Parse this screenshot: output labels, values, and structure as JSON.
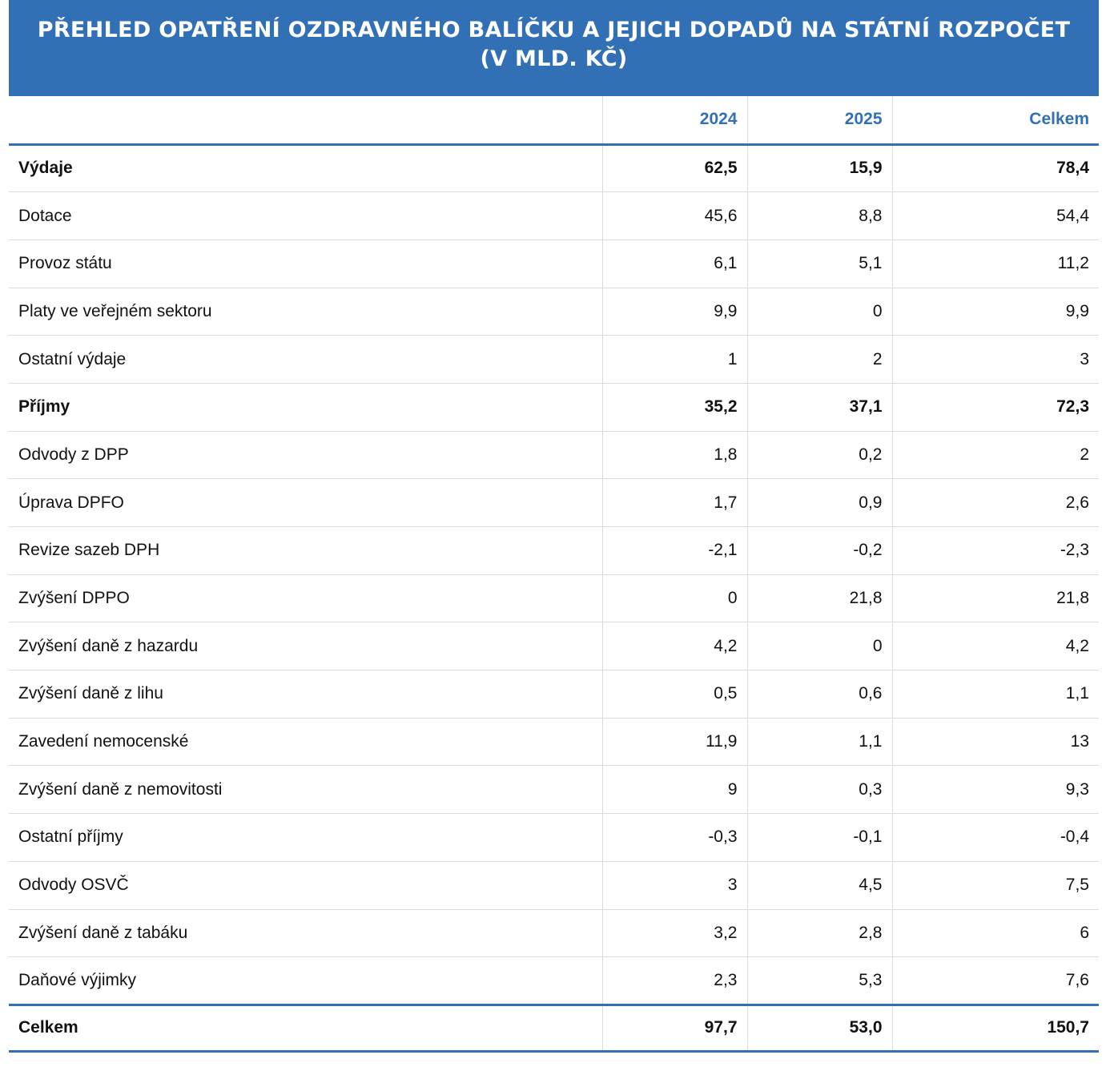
{
  "colors": {
    "accent": "#3270b6",
    "grid": "#dcdcdc",
    "text": "#111111"
  },
  "chart_data": {
    "type": "table",
    "title": "PŘEHLED OPATŘENÍ OZDRAVNÉHO BALÍČKU A JEJICH DOPADŮ NA STÁTNÍ ROZPOČET (V MLD. KČ)",
    "columns": [
      "",
      "2024",
      "2025",
      "Celkem"
    ],
    "rows": [
      {
        "label": "Výdaje",
        "bold": true,
        "values": [
          "62,5",
          "15,9",
          "78,4"
        ]
      },
      {
        "label": "Dotace",
        "bold": false,
        "values": [
          "45,6",
          "8,8",
          "54,4"
        ]
      },
      {
        "label": "Provoz státu",
        "bold": false,
        "values": [
          "6,1",
          "5,1",
          "11,2"
        ]
      },
      {
        "label": "Platy ve veřejném sektoru",
        "bold": false,
        "values": [
          "9,9",
          "0",
          "9,9"
        ]
      },
      {
        "label": "Ostatní výdaje",
        "bold": false,
        "values": [
          "1",
          "2",
          "3"
        ]
      },
      {
        "label": "Příjmy",
        "bold": true,
        "values": [
          "35,2",
          "37,1",
          "72,3"
        ]
      },
      {
        "label": "Odvody z DPP",
        "bold": false,
        "values": [
          "1,8",
          "0,2",
          "2"
        ]
      },
      {
        "label": "Úprava DPFO",
        "bold": false,
        "values": [
          "1,7",
          "0,9",
          "2,6"
        ]
      },
      {
        "label": "Revize sazeb DPH",
        "bold": false,
        "values": [
          "-2,1",
          "-0,2",
          "-2,3"
        ]
      },
      {
        "label": "Zvýšení DPPO",
        "bold": false,
        "values": [
          "0",
          "21,8",
          "21,8"
        ]
      },
      {
        "label": "Zvýšení daně z hazardu",
        "bold": false,
        "values": [
          "4,2",
          "0",
          "4,2"
        ]
      },
      {
        "label": "Zvýšení daně z lihu",
        "bold": false,
        "values": [
          "0,5",
          "0,6",
          "1,1"
        ]
      },
      {
        "label": "Zavedení nemocenské",
        "bold": false,
        "values": [
          "11,9",
          "1,1",
          "13"
        ]
      },
      {
        "label": "Zvýšení daně z nemovitosti",
        "bold": false,
        "values": [
          "9",
          "0,3",
          "9,3"
        ]
      },
      {
        "label": "Ostatní příjmy",
        "bold": false,
        "values": [
          "-0,3",
          "-0,1",
          "-0,4"
        ]
      },
      {
        "label": "Odvody OSVČ",
        "bold": false,
        "values": [
          "3",
          "4,5",
          "7,5"
        ]
      },
      {
        "label": "Zvýšení daně z tabáku",
        "bold": false,
        "values": [
          "3,2",
          "2,8",
          "6"
        ]
      },
      {
        "label": "Daňové výjimky",
        "bold": false,
        "values": [
          "2,3",
          "5,3",
          "7,6"
        ]
      }
    ],
    "total": {
      "label": "Celkem",
      "values": [
        "97,7",
        "53,0",
        "150,7"
      ]
    }
  }
}
